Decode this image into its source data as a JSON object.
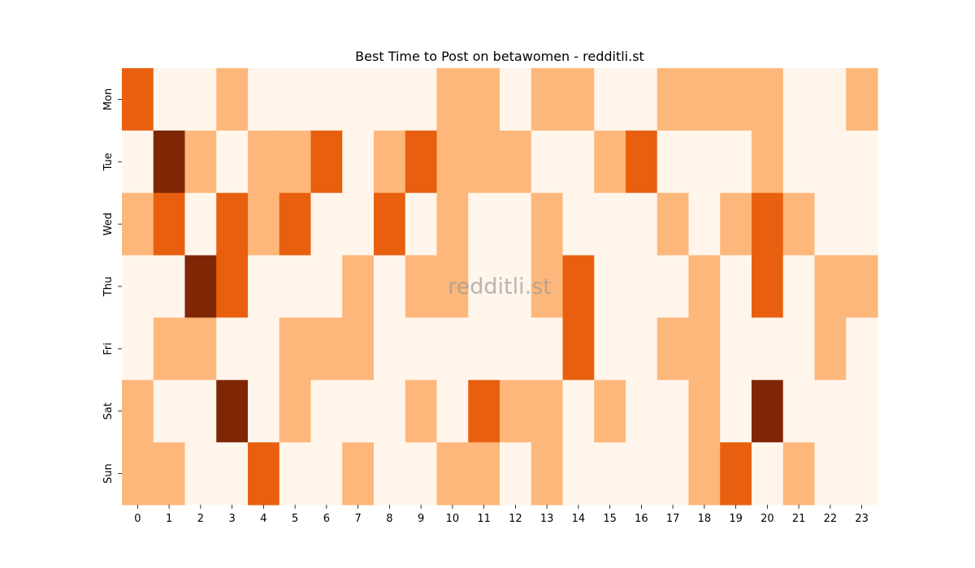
{
  "chart_data": {
    "type": "heatmap",
    "title": "Best Time to Post on betawomen - redditli.st",
    "watermark": "redditli.st",
    "xlabel": "",
    "ylabel": "",
    "x_categories": [
      "0",
      "1",
      "2",
      "3",
      "4",
      "5",
      "6",
      "7",
      "8",
      "9",
      "10",
      "11",
      "12",
      "13",
      "14",
      "15",
      "16",
      "17",
      "18",
      "19",
      "20",
      "21",
      "22",
      "23"
    ],
    "y_categories": [
      "Mon",
      "Tue",
      "Wed",
      "Thu",
      "Fri",
      "Sat",
      "Sun"
    ],
    "value_range": [
      0,
      3
    ],
    "colormap": [
      "#fff5eb",
      "#fdb77a",
      "#e8600f",
      "#7f2704"
    ],
    "values": [
      [
        2,
        0,
        0,
        1,
        0,
        0,
        0,
        0,
        0,
        0,
        1,
        1,
        0,
        1,
        1,
        0,
        0,
        1,
        1,
        1,
        1,
        0,
        0,
        1
      ],
      [
        0,
        3,
        1,
        0,
        1,
        1,
        2,
        0,
        1,
        2,
        1,
        1,
        1,
        0,
        0,
        1,
        2,
        0,
        0,
        0,
        1,
        0,
        0,
        0
      ],
      [
        1,
        2,
        0,
        2,
        1,
        2,
        0,
        0,
        2,
        0,
        1,
        0,
        0,
        1,
        0,
        0,
        0,
        1,
        0,
        1,
        2,
        1,
        0,
        0
      ],
      [
        0,
        0,
        3,
        2,
        0,
        0,
        0,
        1,
        0,
        1,
        1,
        0,
        0,
        1,
        2,
        0,
        0,
        0,
        1,
        0,
        2,
        0,
        1,
        1
      ],
      [
        0,
        1,
        1,
        0,
        0,
        1,
        1,
        1,
        0,
        0,
        0,
        0,
        0,
        0,
        2,
        0,
        0,
        1,
        1,
        0,
        0,
        0,
        1,
        0
      ],
      [
        1,
        0,
        0,
        3,
        0,
        1,
        0,
        0,
        0,
        1,
        0,
        2,
        1,
        1,
        0,
        1,
        0,
        0,
        1,
        0,
        3,
        0,
        0,
        0
      ],
      [
        1,
        1,
        0,
        0,
        2,
        0,
        0,
        1,
        0,
        0,
        1,
        1,
        0,
        1,
        0,
        0,
        0,
        0,
        1,
        2,
        0,
        1,
        0,
        0
      ]
    ],
    "grid": false,
    "legend": "none"
  }
}
